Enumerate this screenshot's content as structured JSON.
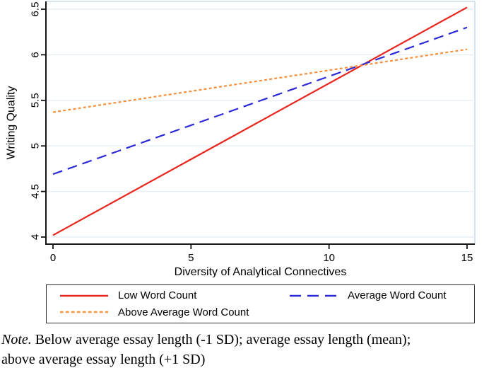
{
  "chart_data": {
    "type": "line",
    "title": "",
    "xlabel": "Diversity of Analytical Connectives",
    "ylabel": "Writing Quality",
    "xlim": [
      0,
      15
    ],
    "ylim": [
      3.92,
      6.59
    ],
    "xticks": [
      0,
      5,
      10,
      15
    ],
    "yticks": [
      4,
      4.5,
      5,
      5.5,
      6,
      6.5
    ],
    "grid": "horizontal-only",
    "y_tick_label_rotation": -90,
    "legend_position": "bottom",
    "series": [
      {
        "name": "Low Word Count",
        "color": "#e8251d",
        "dash": "solid",
        "x": [
          0,
          15
        ],
        "y": [
          4.02,
          6.52
        ]
      },
      {
        "name": "Average Word Count",
        "color": "#2d2bd8",
        "dash": "long-dash",
        "x": [
          0,
          15
        ],
        "y": [
          4.69,
          6.3
        ]
      },
      {
        "name": "Above Average Word Count",
        "color": "#f5913c",
        "dash": "short-dash",
        "x": [
          0,
          15
        ],
        "y": [
          5.37,
          6.06
        ]
      }
    ],
    "colors": {
      "grid": "#e6eef4",
      "plot_border": "#c9dde8",
      "axis": "#141414",
      "text": "#000000",
      "background": "#ffffff"
    }
  },
  "note": {
    "prefix": "Note.",
    "line1": " Below average essay length (-1 SD); average essay length (mean);",
    "line2": "above average essay length (+1 SD)"
  }
}
